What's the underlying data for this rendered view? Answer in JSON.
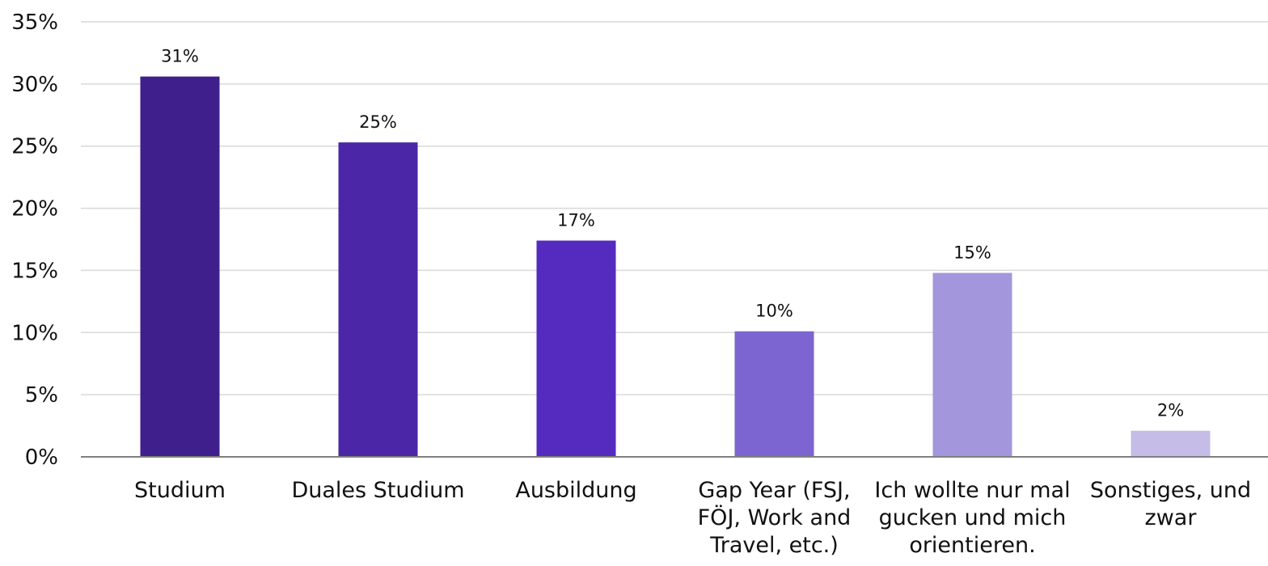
{
  "chart_data": {
    "type": "bar",
    "categories": [
      [
        "Studium"
      ],
      [
        "Duales Studium"
      ],
      [
        "Ausbildung"
      ],
      [
        "Gap Year (FSJ,",
        "FÖJ, Work and",
        "Travel, etc.)"
      ],
      [
        "Ich wollte nur mal",
        "gucken und mich",
        "orientieren."
      ],
      [
        "Sonstiges, und",
        "zwar"
      ]
    ],
    "values": [
      30.6,
      25.3,
      17.4,
      10.1,
      14.8,
      2.1
    ],
    "data_labels": [
      "31%",
      "25%",
      "17%",
      "10%",
      "15%",
      "2%"
    ],
    "bar_colors": [
      "#3f1f8c",
      "#4b27a8",
      "#552abf",
      "#7c65d0",
      "#a396dc",
      "#c5bde8"
    ],
    "ylim": [
      0,
      35
    ],
    "yticks": [
      0,
      5,
      10,
      15,
      20,
      25,
      30,
      35
    ],
    "ytick_labels": [
      "0%",
      "5%",
      "10%",
      "15%",
      "20%",
      "25%",
      "30%",
      "35%"
    ],
    "grid": true,
    "gridline_color": "#d9d9d9",
    "axis_color": "#7f7f7f",
    "title": "",
    "xlabel": "",
    "ylabel": ""
  }
}
